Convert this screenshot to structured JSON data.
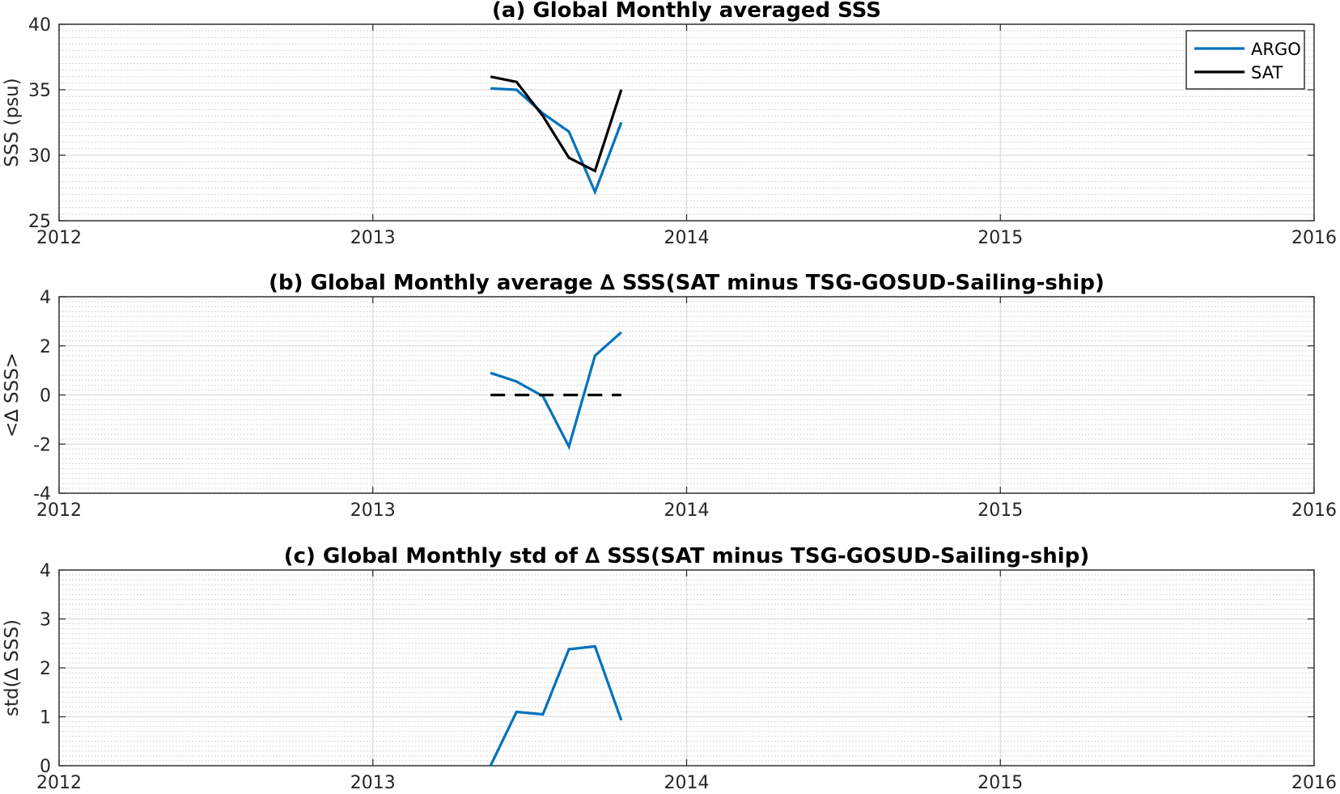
{
  "chart_data": [
    {
      "type": "line",
      "title": "(a) Global Monthly averaged SSS",
      "xlabel": "",
      "ylabel": "SSS (psu)",
      "xlim": [
        2012,
        2016
      ],
      "ylim": [
        25,
        40
      ],
      "xticks": [
        2012,
        2013,
        2014,
        2015,
        2016
      ],
      "yticks": [
        25,
        30,
        35,
        40
      ],
      "grid": true,
      "minor_grid": true,
      "legend": "top-right",
      "series": [
        {
          "name": "ARGO",
          "color": "#0072BD",
          "style": "solid",
          "x": [
            2013.375,
            2013.458,
            2013.542,
            2013.625,
            2013.708,
            2013.792
          ],
          "y": [
            35.1,
            35.0,
            33.2,
            31.8,
            27.2,
            32.5
          ]
        },
        {
          "name": "SAT",
          "color": "#000000",
          "style": "solid",
          "x": [
            2013.375,
            2013.458,
            2013.542,
            2013.625,
            2013.708,
            2013.792
          ],
          "y": [
            36.0,
            35.6,
            33.0,
            29.8,
            28.8,
            35.0
          ]
        }
      ]
    },
    {
      "type": "line",
      "title": "(b) Global Monthly average ∆ SSS(SAT minus TSG-GOSUD-Sailing-ship)",
      "xlabel": "",
      "ylabel": "<∆ SSS>",
      "xlim": [
        2012,
        2016
      ],
      "ylim": [
        -4,
        4
      ],
      "xticks": [
        2012,
        2013,
        2014,
        2015,
        2016
      ],
      "yticks": [
        -4,
        -2,
        0,
        2,
        4
      ],
      "grid": true,
      "minor_grid": true,
      "series": [
        {
          "color": "#0072BD",
          "style": "solid",
          "x": [
            2013.375,
            2013.458,
            2013.542,
            2013.625,
            2013.708,
            2013.792
          ],
          "y": [
            0.9,
            0.55,
            -0.05,
            -2.1,
            1.6,
            2.55
          ]
        },
        {
          "color": "#000000",
          "style": "dashed",
          "x": [
            2013.375,
            2013.792
          ],
          "y": [
            0,
            0
          ]
        }
      ]
    },
    {
      "type": "line",
      "title": "(c) Global Monthly std of ∆ SSS(SAT minus TSG-GOSUD-Sailing-ship)",
      "xlabel": "",
      "ylabel": "std(∆ SSS)",
      "xlim": [
        2012,
        2016
      ],
      "ylim": [
        0,
        4
      ],
      "xticks": [
        2012,
        2013,
        2014,
        2015,
        2016
      ],
      "yticks": [
        0,
        1,
        2,
        3,
        4
      ],
      "grid": true,
      "minor_grid": true,
      "series": [
        {
          "color": "#0072BD",
          "style": "solid",
          "x": [
            2013.375,
            2013.458,
            2013.542,
            2013.625,
            2013.708,
            2013.792
          ],
          "y": [
            0.0,
            1.1,
            1.05,
            2.38,
            2.44,
            0.93
          ]
        }
      ]
    }
  ]
}
